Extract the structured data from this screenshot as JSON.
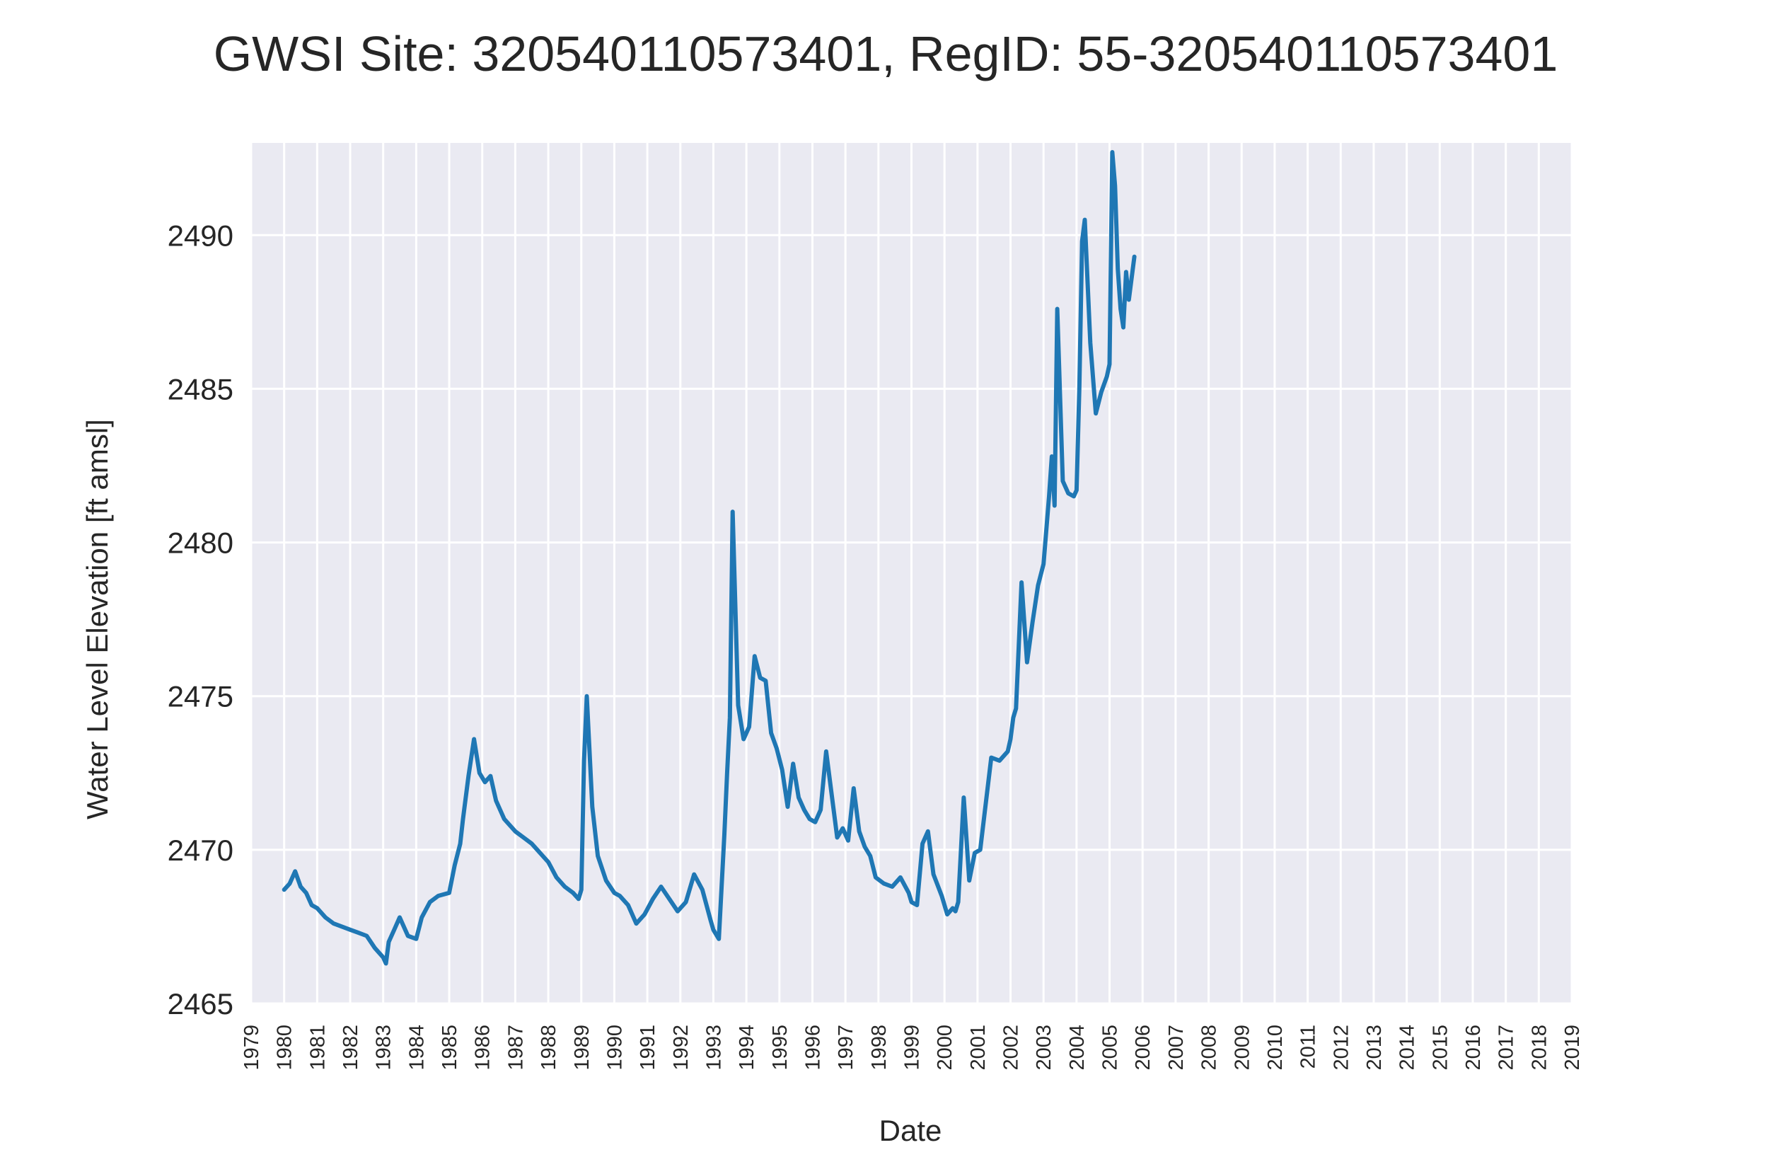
{
  "chart_data": {
    "type": "line",
    "title": "GWSI Site: 320540110573401, RegID: 55-320540110573401",
    "xlabel": "Date",
    "ylabel": "Water Level Elevation [ft amsl]",
    "xlim": [
      "1979-01-01",
      "2019-01-01"
    ],
    "ylim": [
      2465,
      2493
    ],
    "yticks": [
      2465,
      2470,
      2475,
      2480,
      2485,
      2490
    ],
    "xticks": [
      "1979",
      "1980",
      "1981",
      "1982",
      "1983",
      "1984",
      "1985",
      "1986",
      "1987",
      "1988",
      "1989",
      "1990",
      "1991",
      "1992",
      "1993",
      "1994",
      "1995",
      "1996",
      "1997",
      "1998",
      "1999",
      "2000",
      "2001",
      "2002",
      "2003",
      "2004",
      "2005",
      "2006",
      "2007",
      "2008",
      "2009",
      "2010",
      "2011",
      "2012",
      "2013",
      "2014",
      "2015",
      "2016",
      "2017",
      "2018",
      "2019"
    ],
    "grid": true,
    "background": "#eaeaf2",
    "series_color": "#1f77b4",
    "series": [
      {
        "x": [
          "1980-01-01",
          "1980-03-01",
          "1980-05-01",
          "1980-07-01",
          "1980-09-01",
          "1980-11-01",
          "1981-01-01",
          "1981-04-01",
          "1981-07-01",
          "1981-10-01",
          "1982-01-01",
          "1982-04-01",
          "1982-07-01",
          "1982-10-01",
          "1983-01-01",
          "1983-02-01",
          "1983-03-01",
          "1983-05-01",
          "1983-07-01",
          "1983-10-01",
          "1984-01-01",
          "1984-03-01",
          "1984-06-01",
          "1984-09-01",
          "1985-01-01",
          "1985-03-01",
          "1985-05-01",
          "1985-06-01",
          "1985-08-01",
          "1985-10-01",
          "1985-12-01",
          "1986-02-01",
          "1986-04-01",
          "1986-06-01",
          "1986-09-01",
          "1987-01-01",
          "1987-04-01",
          "1987-07-01",
          "1987-10-01",
          "1988-01-01",
          "1988-04-01",
          "1988-07-01",
          "1988-10-01",
          "1988-12-01",
          "1989-01-01",
          "1989-02-01",
          "1989-03-01",
          "1989-05-01",
          "1989-07-01",
          "1989-10-01",
          "1990-01-01",
          "1990-03-01",
          "1990-06-01",
          "1990-09-01",
          "1990-12-01",
          "1991-03-01",
          "1991-06-01",
          "1991-09-01",
          "1991-12-01",
          "1992-03-01",
          "1992-06-01",
          "1992-09-01",
          "1992-12-01",
          "1993-01-01",
          "1993-03-01",
          "1993-05-01",
          "1993-06-01",
          "1993-07-01",
          "1993-08-01",
          "1993-10-01",
          "1993-12-01",
          "1994-02-01",
          "1994-04-01",
          "1994-06-01",
          "1994-08-01",
          "1994-10-01",
          "1994-12-01",
          "1995-02-01",
          "1995-04-01",
          "1995-06-01",
          "1995-08-01",
          "1995-10-01",
          "1995-12-01",
          "1996-02-01",
          "1996-04-01",
          "1996-06-01",
          "1996-08-01",
          "1996-10-01",
          "1996-12-01",
          "1997-02-01",
          "1997-04-01",
          "1997-06-01",
          "1997-08-01",
          "1997-10-01",
          "1997-12-01",
          "1998-03-01",
          "1998-06-01",
          "1998-09-01",
          "1998-12-01",
          "1999-01-01",
          "1999-03-01",
          "1999-05-01",
          "1999-07-01",
          "1999-09-01",
          "1999-12-01",
          "2000-02-01",
          "2000-04-01",
          "2000-05-01",
          "2000-06-01",
          "2000-08-01",
          "2000-10-01",
          "2000-12-01",
          "2001-02-01",
          "2001-04-01",
          "2001-06-01",
          "2001-09-01",
          "2001-12-01",
          "2002-01-01",
          "2002-02-01",
          "2002-03-01",
          "2002-05-01",
          "2002-07-01",
          "2002-09-01",
          "2002-11-01",
          "2003-01-01",
          "2003-03-01",
          "2003-04-01",
          "2003-05-01",
          "2003-06-01",
          "2003-08-01",
          "2003-10-01",
          "2003-12-01",
          "2004-01-01",
          "2004-02-01",
          "2004-03-01",
          "2004-04-01",
          "2004-06-01",
          "2004-08-01",
          "2004-10-01",
          "2004-12-01",
          "2005-01-01",
          "2005-02-01",
          "2005-03-01",
          "2005-04-01",
          "2005-05-01",
          "2005-06-01",
          "2005-07-01",
          "2005-08-01",
          "2005-09-01",
          "2005-10-01"
        ],
        "y": [
          2468.7,
          2468.9,
          2469.3,
          2468.8,
          2468.6,
          2468.2,
          2468.1,
          2467.8,
          2467.6,
          2467.5,
          2467.4,
          2467.3,
          2467.2,
          2466.8,
          2466.5,
          2466.3,
          2467.0,
          2467.4,
          2467.8,
          2467.2,
          2467.1,
          2467.8,
          2468.3,
          2468.5,
          2468.6,
          2469.5,
          2470.2,
          2471.0,
          2472.4,
          2473.6,
          2472.5,
          2472.2,
          2472.4,
          2471.6,
          2471.0,
          2470.6,
          2470.4,
          2470.2,
          2469.9,
          2469.6,
          2469.1,
          2468.8,
          2468.6,
          2468.4,
          2468.7,
          2472.9,
          2475.0,
          2471.4,
          2469.8,
          2469.0,
          2468.6,
          2468.5,
          2468.2,
          2467.6,
          2467.9,
          2468.4,
          2468.8,
          2468.4,
          2468.0,
          2468.3,
          2469.2,
          2468.7,
          2467.7,
          2467.4,
          2467.1,
          2470.5,
          2472.5,
          2474.3,
          2481.0,
          2474.7,
          2473.6,
          2474.0,
          2476.3,
          2475.6,
          2475.5,
          2473.8,
          2473.3,
          2472.6,
          2471.4,
          2472.8,
          2471.7,
          2471.3,
          2471.0,
          2470.9,
          2471.3,
          2473.2,
          2471.8,
          2470.4,
          2470.7,
          2470.3,
          2472.0,
          2470.6,
          2470.1,
          2469.8,
          2469.1,
          2468.9,
          2468.8,
          2469.1,
          2468.6,
          2468.3,
          2468.2,
          2470.2,
          2470.6,
          2469.2,
          2468.5,
          2467.9,
          2468.1,
          2468.0,
          2468.3,
          2471.7,
          2469.0,
          2469.9,
          2470.0,
          2471.5,
          2473.0,
          2472.9,
          2473.2,
          2473.6,
          2474.3,
          2474.6,
          2478.7,
          2476.1,
          2477.4,
          2478.6,
          2479.3,
          2481.5,
          2482.8,
          2481.2,
          2487.6,
          2482.0,
          2481.6,
          2481.5,
          2481.7,
          2485.0,
          2489.8,
          2490.5,
          2486.5,
          2484.2,
          2484.9,
          2485.4,
          2485.8,
          2492.7,
          2491.6,
          2488.9,
          2487.6,
          2487.0,
          2488.8,
          2487.9,
          2488.6,
          2489.3
        ]
      }
    ]
  }
}
